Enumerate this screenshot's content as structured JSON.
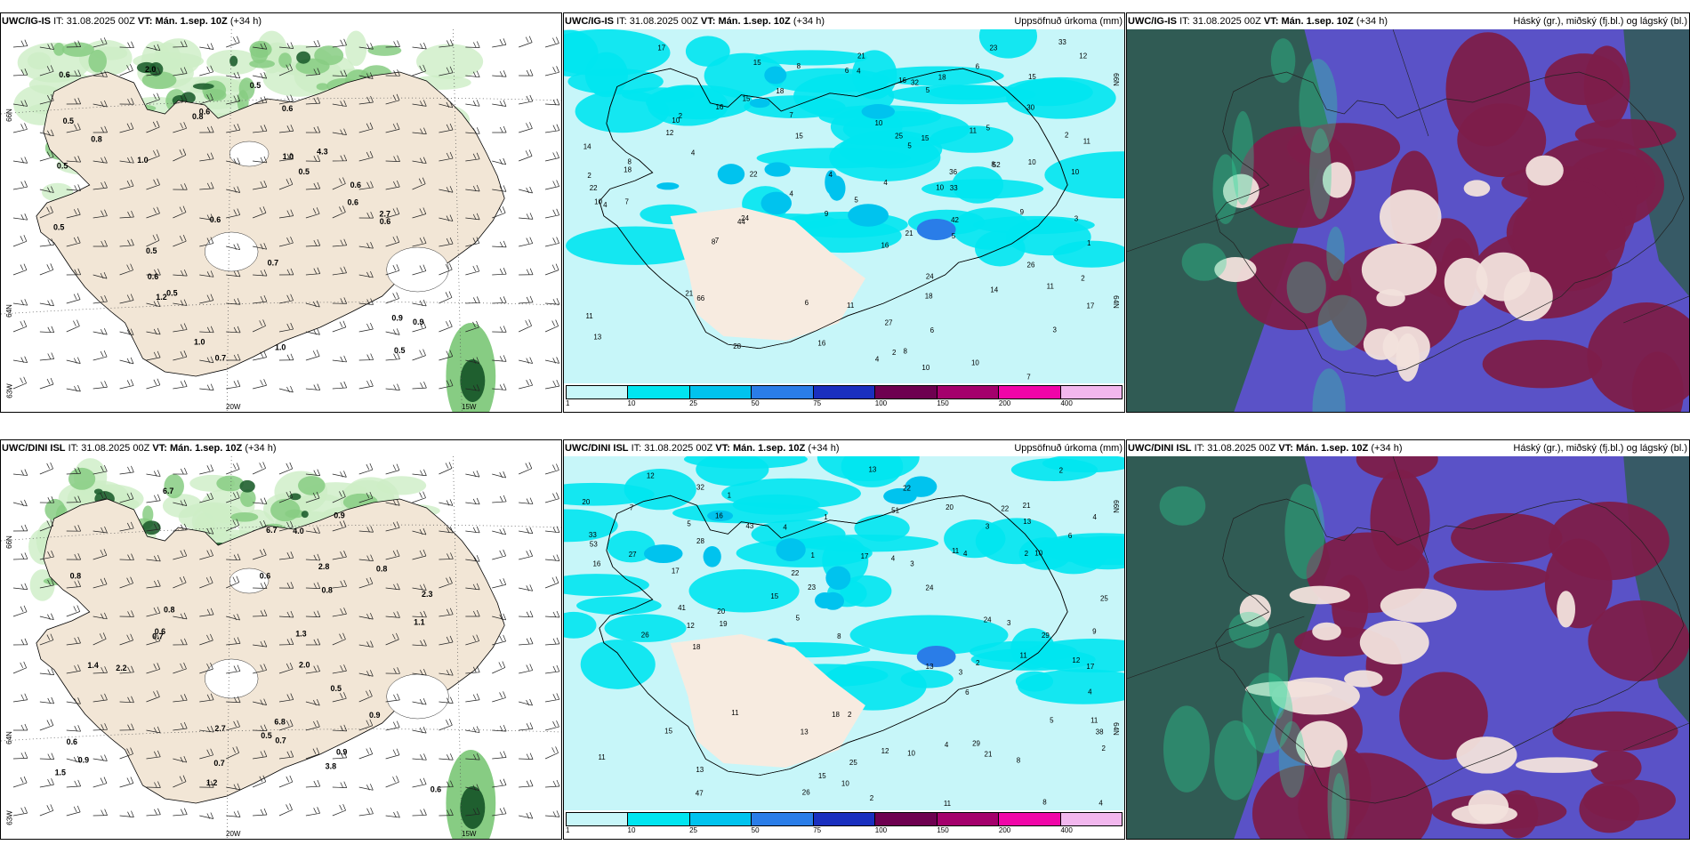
{
  "panels": [
    {
      "id": "p1",
      "model": "UWC/IG-IS",
      "it_label": "IT:",
      "it_value": "31.08.2025 00Z",
      "vt_label": "VT:",
      "vt_value": "Mán. 1.sep. 10Z",
      "lead": "(+34 h)",
      "title_right": "",
      "labels": [
        "0.7",
        "0.6",
        "2.7",
        "4.3",
        "0.9",
        "0.6",
        "0.5",
        "0.5",
        "0.5",
        "1.0",
        "1.0",
        "0.6",
        "0.5",
        "0.6",
        "0.6",
        "0.9",
        "1.0",
        "2.0",
        "0.5",
        "0.6",
        "0.6",
        "0.6",
        "0.5",
        "1.2",
        "0.7",
        "0.5",
        "0.8",
        "0.8",
        "0.5",
        "1.0"
      ],
      "edge_left": [
        "66N",
        "64N",
        "63W"
      ],
      "edge_bottom": [
        "20W",
        "15W"
      ]
    },
    {
      "id": "p2",
      "model": "UWC/IG-IS",
      "it_label": "IT:",
      "it_value": "31.08.2025 00Z",
      "vt_label": "VT:",
      "vt_value": "Mán. 1.sep. 10Z",
      "lead": "(+34 h)",
      "title_right": "Uppsöfnuð úrkoma (mm)",
      "labels": [
        "17",
        "15",
        "14",
        "30",
        "28",
        "36",
        "24",
        "9",
        "8",
        "3",
        "2",
        "26",
        "33",
        "52",
        "10",
        "10",
        "25",
        "32",
        "16",
        "11",
        "9",
        "11",
        "21",
        "33",
        "15",
        "10",
        "10",
        "12",
        "15",
        "11",
        "8",
        "21",
        "27",
        "11",
        "21",
        "15",
        "6",
        "16",
        "4",
        "2",
        "5",
        "18",
        "5",
        "6",
        "10",
        "8",
        "23",
        "44",
        "22",
        "10",
        "18",
        "18",
        "24",
        "15",
        "6",
        "66",
        "12",
        "17",
        "22",
        "42",
        "16",
        "13",
        "16",
        "18",
        "4",
        "5",
        "4",
        "2",
        "8",
        "4",
        "5",
        "1",
        "10",
        "7",
        "11",
        "14",
        "2",
        "5",
        "7",
        "4",
        "7",
        "3",
        "4",
        "8",
        "4",
        "6",
        "7",
        "2",
        "10"
      ],
      "edge_right": [
        "66N",
        "64N"
      ]
    },
    {
      "id": "p3",
      "model": "UWC/IG-IS",
      "it_label": "IT:",
      "it_value": "31.08.2025 00Z",
      "vt_label": "VT:",
      "vt_value": "Mán. 1.sep. 10Z",
      "lead": "(+34 h)",
      "title_right": "Háský (gr.), miðský (fj.bl.) og lágský (bl.)"
    },
    {
      "id": "p4",
      "model": "UWC/DINI ISL",
      "it_label": "IT:",
      "it_value": "31.08.2025 00Z",
      "vt_label": "VT:",
      "vt_value": "Mán. 1.sep. 10Z",
      "lead": "(+34 h)",
      "title_right": "",
      "labels": [
        "0.6",
        "0.9",
        "3.8",
        "6.7",
        "6.8",
        "2.2",
        "2.0",
        "0.8",
        "4.0",
        "2.7",
        "6.7",
        "1.2",
        "0.6",
        "0.8",
        "0.8",
        "1.3",
        "0.8",
        "0.7",
        "0.5",
        "2.3",
        "1.5",
        "0.7",
        "0.9",
        "0.7",
        "0.6",
        "0.9",
        "0.9",
        "1.1",
        "0.6",
        "0.5",
        "1.4",
        "2.8"
      ],
      "edge_left": [
        "66N",
        "64N",
        "63W"
      ],
      "edge_bottom": [
        "20W",
        "15W"
      ]
    },
    {
      "id": "p5",
      "model": "UWC/DINI ISL",
      "it_label": "IT:",
      "it_value": "31.08.2025 00Z",
      "vt_label": "VT:",
      "vt_value": "Mán. 1.sep. 10Z",
      "lead": "(+34 h)",
      "title_right": "Uppsöfnuð úrkoma (mm)",
      "labels": [
        "10",
        "17",
        "18",
        "11",
        "11",
        "11",
        "11",
        "16",
        "2",
        "38",
        "13",
        "9",
        "26",
        "15",
        "24",
        "33",
        "41",
        "47",
        "53",
        "28",
        "24",
        "15",
        "22",
        "26",
        "13",
        "19",
        "21",
        "17",
        "12",
        "16",
        "11",
        "15",
        "25",
        "13",
        "20",
        "4",
        "8",
        "12",
        "21",
        "29",
        "23",
        "18",
        "20",
        "17",
        "13",
        "22",
        "12",
        "12",
        "4",
        "10",
        "8",
        "27",
        "20",
        "32",
        "43",
        "51",
        "13",
        "11",
        "4",
        "5",
        "22",
        "29",
        "25",
        "6",
        "4",
        "3",
        "5",
        "2",
        "1",
        "3",
        "5",
        "3",
        "1",
        "1",
        "2",
        "6",
        "4",
        "4",
        "3",
        "4",
        "2",
        "2",
        "10",
        "7",
        "8",
        "2"
      ],
      "edge_right": [
        "66N",
        "64N"
      ]
    },
    {
      "id": "p6",
      "model": "UWC/DINI ISL",
      "it_label": "IT:",
      "it_value": "31.08.2025 00Z",
      "vt_label": "VT:",
      "vt_value": "Mán. 1.sep. 10Z",
      "lead": "(+34 h)",
      "title_right": "Háský (gr.), miðský (fj.bl.) og lágský (bl.)"
    }
  ],
  "precip_legend": {
    "ticks": [
      "1",
      "10",
      "25",
      "50",
      "75",
      "100",
      "150",
      "200",
      "400"
    ],
    "colors": [
      "#c7f6f9",
      "#00e5f0",
      "#00c3ee",
      "#2a7de8",
      "#1a2fbf",
      "#6e0050",
      "#a4006c",
      "#f005a8",
      "#f2b7ee"
    ]
  },
  "colors": {
    "land": "#f2e6d6",
    "sea": "#ffffff",
    "green_light": "#cdeec5",
    "green_mid": "#87cc83",
    "green_dark": "#1f5f2f",
    "cloud_high": "#2e5c4e",
    "cloud_mid": "#7d1d4a",
    "cloud_low": "#5a52c7"
  }
}
